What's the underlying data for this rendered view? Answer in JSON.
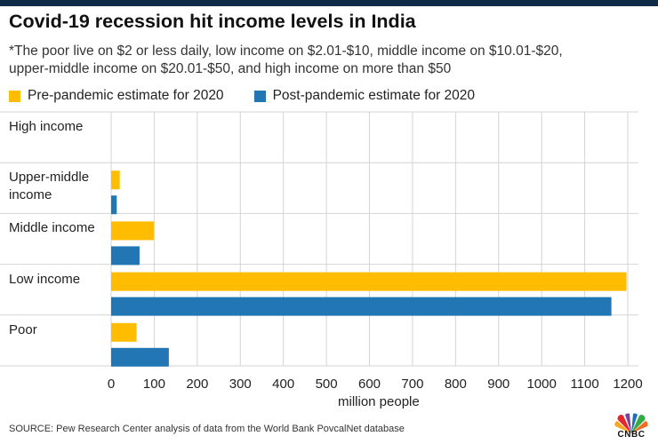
{
  "header": {
    "title": "Covid-19 recession hit income levels in India",
    "subtitle_line1": "*The poor live on $2 or less daily, low income on $2.01-$10, middle income on $10.01-$20,",
    "subtitle_line2": "upper-middle income on $20.01-$50, and high income on more than $50"
  },
  "legend": {
    "pre_label": "Pre-pandemic estimate for 2020",
    "post_label": "Post-pandemic estimate for 2020"
  },
  "colors": {
    "pre": "#ffbc00",
    "post": "#2276b4",
    "grid": "#d4d4d4",
    "header_bar": "#0e2a47"
  },
  "chart_data": {
    "type": "bar",
    "orientation": "horizontal",
    "title": "Covid-19 recession hit income levels in India",
    "categories": [
      "High income",
      "Upper-middle income",
      "Middle income",
      "Low income",
      "Poor"
    ],
    "category_lines": [
      [
        "High income"
      ],
      [
        "Upper-middle",
        "income"
      ],
      [
        "Middle income"
      ],
      [
        "Low income"
      ],
      [
        "Poor"
      ]
    ],
    "series": [
      {
        "name": "Pre-pandemic estimate for 2020",
        "values": [
          0,
          20,
          99,
          1197,
          59
        ]
      },
      {
        "name": "Post-pandemic estimate for 2020",
        "values": [
          0,
          13,
          66,
          1162,
          134
        ]
      }
    ],
    "xlabel": "million people",
    "xlim": [
      0,
      1200
    ],
    "xticks": [
      0,
      100,
      200,
      300,
      400,
      500,
      600,
      700,
      800,
      900,
      1000,
      1100,
      1200
    ],
    "grid": true,
    "legend_position": "top-left"
  },
  "footer": {
    "source": "SOURCE: Pew Research Center analysis of data from the World Bank PovcalNet database",
    "logo_text": "CNBC"
  }
}
